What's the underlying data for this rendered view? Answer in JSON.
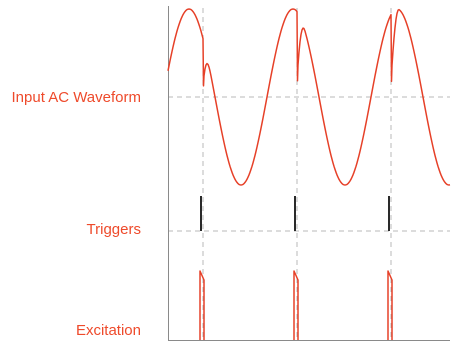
{
  "labels": {
    "input_waveform": "Input AC Waveform",
    "triggers": "Triggers",
    "excitation": "Excitation"
  },
  "colors": {
    "label": "#ee4a2b",
    "waveform": "#e64028",
    "trigger": "#2a2a2a",
    "guide": "#b9b9b9",
    "axis": "#8a8a8a"
  }
}
